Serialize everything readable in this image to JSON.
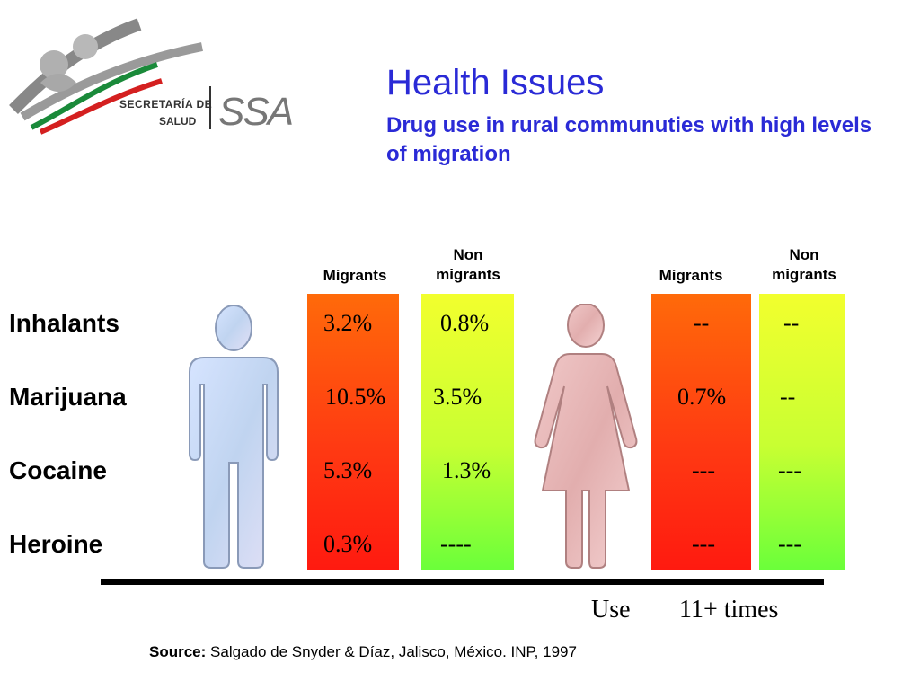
{
  "logo": {
    "line1": "SECRETARÍA DE",
    "line2": "SALUD",
    "mark": "SSA"
  },
  "slide": {
    "title": "Health Issues",
    "subtitle": "Drug use in rural communuties with high levels of migration"
  },
  "groups": [
    {
      "figure": "man-figure-icon",
      "headers": [
        "Migrants",
        "Non migrants"
      ]
    },
    {
      "figure": "woman-figure-icon",
      "headers": [
        "Migrants",
        "Non migrants"
      ]
    }
  ],
  "headers": {
    "m_migrants": "Migrants",
    "m_non_1": "Non",
    "m_non_2": "migrants",
    "f_migrants": "Migrants",
    "f_non_1": "Non",
    "f_non_2": "migrants"
  },
  "rows": [
    {
      "label": "Inhalants",
      "male_migrants": "3.2%",
      "male_non_migrants": "0.8%",
      "female_migrants": "--",
      "female_non_migrants": "--"
    },
    {
      "label": "Marijuana",
      "male_migrants": "10.5%",
      "male_non_migrants": "3.5%",
      "female_migrants": "0.7%",
      "female_non_migrants": "--"
    },
    {
      "label": "Cocaine",
      "male_migrants": "5.3%",
      "male_non_migrants": "1.3%",
      "female_migrants": "---",
      "female_non_migrants": "---"
    },
    {
      "label": "Heroine",
      "male_migrants": "0.3%",
      "male_non_migrants": "----",
      "female_migrants": "---",
      "female_non_migrants": "---"
    }
  ],
  "legend": {
    "use": "Use",
    "times": "11+ times"
  },
  "source": {
    "label": "Source:",
    "text": "Salgado de Snyder & Díaz, Jalisco, México. INP, 1997"
  },
  "colors": {
    "title": "#2a2ad6",
    "bar_use": "#ff3a12",
    "bar_frequent": "#c8ff32",
    "man_figure": "#c8d8f4",
    "woman_figure": "#e8b4b4"
  }
}
